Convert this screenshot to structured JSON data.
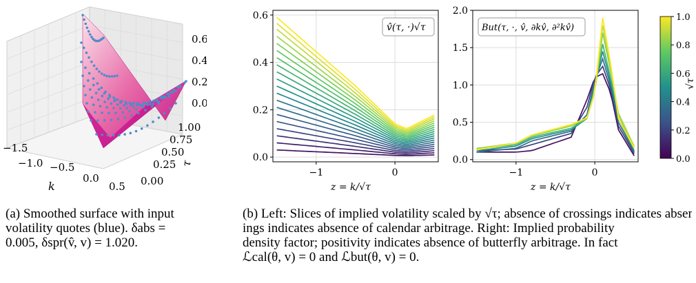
{
  "panel_a": {
    "z_ticks": [
      "0.6",
      "0.4",
      "0.2",
      "0.0"
    ],
    "tau_ticks": [
      "1.00",
      "0.75",
      "0.50",
      "0.25",
      "0.00"
    ],
    "tau_label": "τ",
    "k_ticks": [
      "−1.5",
      "−1.0",
      "−0.5",
      "0.0",
      "0.5"
    ],
    "k_label": "k",
    "caption": {
      "prefix": "(a)",
      "lines": [
        "Smoothed surface with input",
        "volatility quotes (blue).  δabs =",
        "0.005, δspr(v̂, v) = 1.020."
      ]
    }
  },
  "panel_b": {
    "caption": {
      "prefix": "(b)",
      "lines": [
        "Left: Slices of implied volatility scaled by √τ; absence of crossings indicates absence of calendar arbitrage. Right: Implied probability",
        "ings indicates absence of calendar arbitrage. Right: Implied probability",
        "density factor; positivity indicates absence of butterfly arbitrage. In fact",
        "ℒcal(θ, v) = 0 and ℒbut(θ, v) = 0."
      ]
    }
  },
  "chart_data": [
    {
      "type": "line",
      "title": "v̂(τ, ·)√τ",
      "xlabel": "z = k/√τ",
      "ylabel": "",
      "xlim": [
        -1.55,
        0.55
      ],
      "ylim": [
        -0.02,
        0.62
      ],
      "x_ticks": [
        "−1",
        "0"
      ],
      "y_ticks": [
        "0.0",
        "0.2",
        "0.4",
        "0.6"
      ],
      "grid": true,
      "legend": "none",
      "series_description": "20 slices colored by √τ from 0.05 to 1.0",
      "series": [
        {
          "sqrt_tau": 0.05,
          "x": [
            -1.5,
            -0.5,
            0.0,
            0.15,
            0.5
          ],
          "values": [
            0.03,
            0.015,
            0.007,
            0.006,
            0.009
          ]
        },
        {
          "sqrt_tau": 0.1,
          "x": [
            -1.5,
            -0.5,
            0.0,
            0.15,
            0.5
          ],
          "values": [
            0.06,
            0.03,
            0.014,
            0.012,
            0.018
          ]
        },
        {
          "sqrt_tau": 0.15,
          "x": [
            -1.5,
            -0.5,
            0.0,
            0.15,
            0.5
          ],
          "values": [
            0.09,
            0.045,
            0.021,
            0.018,
            0.027
          ]
        },
        {
          "sqrt_tau": 0.2,
          "x": [
            -1.5,
            -0.5,
            0.0,
            0.15,
            0.5
          ],
          "values": [
            0.12,
            0.06,
            0.028,
            0.024,
            0.036
          ]
        },
        {
          "sqrt_tau": 0.25,
          "x": [
            -1.5,
            -0.5,
            0.0,
            0.15,
            0.5
          ],
          "values": [
            0.15,
            0.075,
            0.035,
            0.03,
            0.045
          ]
        },
        {
          "sqrt_tau": 0.3,
          "x": [
            -1.5,
            -0.5,
            0.0,
            0.15,
            0.5
          ],
          "values": [
            0.18,
            0.09,
            0.042,
            0.036,
            0.054
          ]
        },
        {
          "sqrt_tau": 0.35,
          "x": [
            -1.5,
            -0.5,
            0.0,
            0.15,
            0.5
          ],
          "values": [
            0.21,
            0.105,
            0.049,
            0.042,
            0.063
          ]
        },
        {
          "sqrt_tau": 0.4,
          "x": [
            -1.5,
            -0.5,
            0.0,
            0.15,
            0.5
          ],
          "values": [
            0.24,
            0.12,
            0.056,
            0.048,
            0.072
          ]
        },
        {
          "sqrt_tau": 0.45,
          "x": [
            -1.5,
            -0.5,
            0.0,
            0.15,
            0.5
          ],
          "values": [
            0.27,
            0.135,
            0.063,
            0.054,
            0.081
          ]
        },
        {
          "sqrt_tau": 0.5,
          "x": [
            -1.5,
            -0.5,
            0.0,
            0.15,
            0.5
          ],
          "values": [
            0.3,
            0.15,
            0.07,
            0.06,
            0.09
          ]
        },
        {
          "sqrt_tau": 0.55,
          "x": [
            -1.5,
            -0.5,
            0.0,
            0.15,
            0.5
          ],
          "values": [
            0.33,
            0.165,
            0.077,
            0.066,
            0.099
          ]
        },
        {
          "sqrt_tau": 0.6,
          "x": [
            -1.5,
            -0.5,
            0.0,
            0.15,
            0.5
          ],
          "values": [
            0.36,
            0.18,
            0.084,
            0.072,
            0.108
          ]
        },
        {
          "sqrt_tau": 0.65,
          "x": [
            -1.5,
            -0.5,
            0.0,
            0.15,
            0.5
          ],
          "values": [
            0.39,
            0.195,
            0.091,
            0.078,
            0.117
          ]
        },
        {
          "sqrt_tau": 0.7,
          "x": [
            -1.5,
            -0.5,
            0.0,
            0.15,
            0.5
          ],
          "values": [
            0.42,
            0.21,
            0.098,
            0.084,
            0.126
          ]
        },
        {
          "sqrt_tau": 0.75,
          "x": [
            -1.5,
            -0.5,
            0.0,
            0.15,
            0.5
          ],
          "values": [
            0.45,
            0.225,
            0.105,
            0.09,
            0.135
          ]
        },
        {
          "sqrt_tau": 0.8,
          "x": [
            -1.5,
            -0.5,
            0.0,
            0.15,
            0.5
          ],
          "values": [
            0.48,
            0.24,
            0.112,
            0.096,
            0.144
          ]
        },
        {
          "sqrt_tau": 0.85,
          "x": [
            -1.5,
            -0.5,
            0.0,
            0.15,
            0.5
          ],
          "values": [
            0.51,
            0.255,
            0.119,
            0.102,
            0.153
          ]
        },
        {
          "sqrt_tau": 0.9,
          "x": [
            -1.5,
            -0.5,
            0.0,
            0.15,
            0.5
          ],
          "values": [
            0.54,
            0.27,
            0.126,
            0.108,
            0.162
          ]
        },
        {
          "sqrt_tau": 0.95,
          "x": [
            -1.5,
            -0.5,
            0.0,
            0.15,
            0.5
          ],
          "values": [
            0.565,
            0.285,
            0.133,
            0.114,
            0.17
          ]
        },
        {
          "sqrt_tau": 1.0,
          "x": [
            -1.5,
            -0.5,
            0.0,
            0.15,
            0.5
          ],
          "values": [
            0.59,
            0.3,
            0.14,
            0.12,
            0.178
          ]
        }
      ]
    },
    {
      "type": "line",
      "title": "But(τ, ·, v̂, ∂kv̂, ∂²kv̂)",
      "xlabel": "z = k/√τ",
      "ylabel": "",
      "xlim": [
        -1.55,
        0.55
      ],
      "ylim": [
        -0.03,
        2.0
      ],
      "x_ticks": [
        "−1",
        "0"
      ],
      "y_ticks": [
        "0.0",
        "0.5",
        "1.0",
        "1.5",
        "2.0"
      ],
      "grid": true,
      "legend": "none",
      "series_description": "butterfly density factor curves colored by √τ",
      "series": [
        {
          "sqrt_tau": 0.05,
          "x": [
            -1.5,
            -1.0,
            -0.8,
            -0.3,
            -0.1,
            0.0,
            0.1,
            0.2,
            0.3,
            0.5
          ],
          "values": [
            0.1,
            0.1,
            0.12,
            0.3,
            0.8,
            1.1,
            1.15,
            0.9,
            0.4,
            0.05
          ]
        },
        {
          "sqrt_tau": 0.2,
          "x": [
            -1.5,
            -1.0,
            -0.8,
            -0.3,
            -0.1,
            0.0,
            0.1,
            0.2,
            0.3,
            0.5
          ],
          "values": [
            0.12,
            0.14,
            0.2,
            0.35,
            0.7,
            1.1,
            1.25,
            0.95,
            0.45,
            0.08
          ]
        },
        {
          "sqrt_tau": 0.35,
          "x": [
            -1.5,
            -1.0,
            -0.8,
            -0.3,
            -0.1,
            0.0,
            0.1,
            0.2,
            0.3,
            0.5
          ],
          "values": [
            0.1,
            0.15,
            0.25,
            0.38,
            0.6,
            1.05,
            1.35,
            1.0,
            0.5,
            0.1
          ]
        },
        {
          "sqrt_tau": 0.5,
          "x": [
            -1.5,
            -1.0,
            -0.8,
            -0.3,
            -0.1,
            0.0,
            0.1,
            0.2,
            0.3,
            0.5
          ],
          "values": [
            0.12,
            0.18,
            0.28,
            0.4,
            0.55,
            1.0,
            1.45,
            1.05,
            0.55,
            0.12
          ]
        },
        {
          "sqrt_tau": 0.65,
          "x": [
            -1.5,
            -1.0,
            -0.8,
            -0.3,
            -0.1,
            0.0,
            0.1,
            0.2,
            0.3,
            0.5
          ],
          "values": [
            0.14,
            0.2,
            0.3,
            0.42,
            0.55,
            0.95,
            1.55,
            1.1,
            0.6,
            0.15
          ]
        },
        {
          "sqrt_tau": 0.8,
          "x": [
            -1.5,
            -1.0,
            -0.8,
            -0.3,
            -0.1,
            0.0,
            0.1,
            0.2,
            0.3,
            0.5
          ],
          "values": [
            0.15,
            0.22,
            0.32,
            0.45,
            0.55,
            0.9,
            1.7,
            1.2,
            0.62,
            0.18
          ]
        },
        {
          "sqrt_tau": 0.9,
          "x": [
            -1.5,
            -1.0,
            -0.8,
            -0.3,
            -0.1,
            0.0,
            0.1,
            0.2,
            0.3,
            0.5
          ],
          "values": [
            0.14,
            0.22,
            0.33,
            0.46,
            0.56,
            0.9,
            1.8,
            1.25,
            0.6,
            0.18
          ]
        },
        {
          "sqrt_tau": 1.0,
          "x": [
            -1.5,
            -1.0,
            -0.8,
            -0.3,
            -0.1,
            0.0,
            0.1,
            0.2,
            0.3,
            0.5
          ],
          "values": [
            0.13,
            0.22,
            0.33,
            0.47,
            0.56,
            0.9,
            1.9,
            1.3,
            0.55,
            0.15
          ]
        }
      ]
    }
  ],
  "colorbar": {
    "label": "√τ",
    "ticks": [
      "1.0",
      "0.8",
      "0.6",
      "0.4",
      "0.2",
      "0.0"
    ],
    "colors": [
      "#440154",
      "#3b528b",
      "#21918c",
      "#5ec962",
      "#fde725"
    ]
  }
}
